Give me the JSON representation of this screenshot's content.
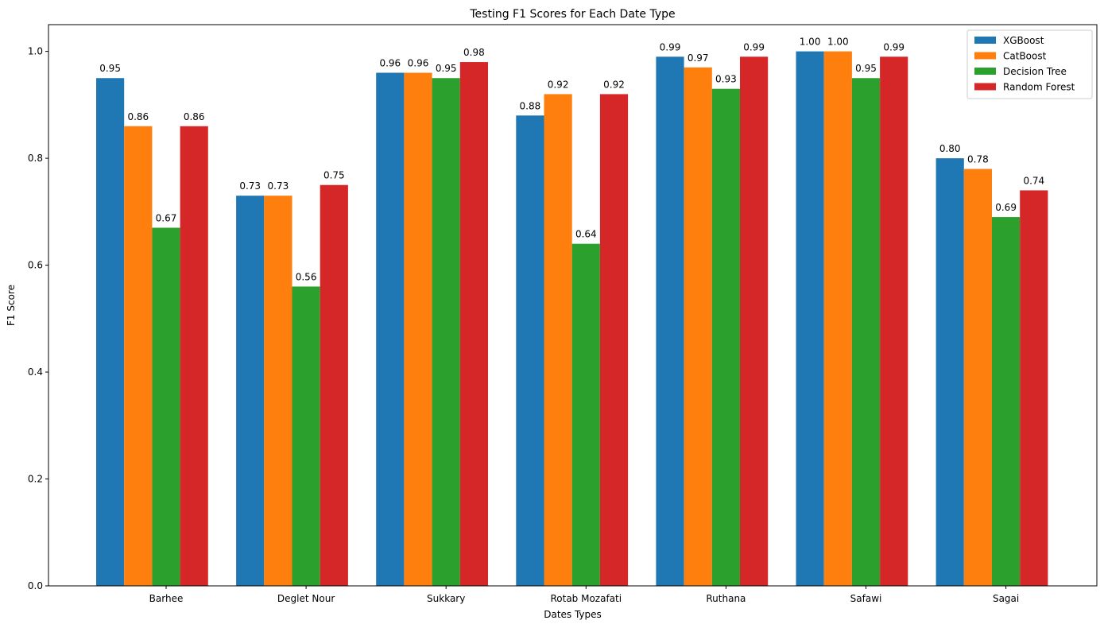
{
  "chart_data": {
    "type": "bar",
    "title": "Testing F1 Scores for Each Date Type",
    "xlabel": "Dates Types",
    "ylabel": "F1 Score",
    "ylim": [
      0,
      1.05
    ],
    "yticks": [
      0.0,
      0.2,
      0.4,
      0.6,
      0.8,
      1.0
    ],
    "ytick_format": 1,
    "value_label_format": 2,
    "grid": false,
    "legend_position": "top-right",
    "categories": [
      "Barhee",
      "Deglet Nour",
      "Sukkary",
      "Rotab Mozafati",
      "Ruthana",
      "Safawi",
      "Sagai"
    ],
    "series": [
      {
        "name": "XGBoost",
        "color": "#1f77b4",
        "values": [
          0.95,
          0.73,
          0.96,
          0.88,
          0.99,
          1.0,
          0.8
        ]
      },
      {
        "name": "CatBoost",
        "color": "#ff7f0e",
        "values": [
          0.86,
          0.73,
          0.96,
          0.92,
          0.97,
          1.0,
          0.78
        ]
      },
      {
        "name": "Decision Tree",
        "color": "#2ca02c",
        "values": [
          0.67,
          0.56,
          0.95,
          0.64,
          0.93,
          0.95,
          0.69
        ]
      },
      {
        "name": "Random Forest",
        "color": "#d62728",
        "values": [
          0.86,
          0.75,
          0.98,
          0.92,
          0.99,
          0.99,
          0.74
        ]
      }
    ]
  }
}
